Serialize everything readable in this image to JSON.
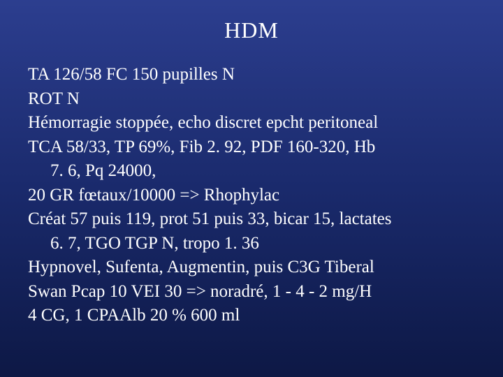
{
  "slide": {
    "title": "HDM",
    "title_fontsize": 32,
    "body_fontsize": 25,
    "text_color": "#ffffff",
    "background_gradient": [
      "#2c3e8f",
      "#1a2a6c",
      "#0d1845"
    ],
    "font_family": "Times New Roman",
    "lines": [
      {
        "text": "TA 126/58 FC 150 pupilles N",
        "indent": false
      },
      {
        "text": "ROT N",
        "indent": false
      },
      {
        "text": "Hémorragie stoppée, echo discret epcht peritoneal",
        "indent": false
      },
      {
        "text": "TCA 58/33, TP 69%, Fib 2. 92, PDF 160-320, Hb",
        "indent": false
      },
      {
        "text": "7. 6, Pq 24000,",
        "indent": true
      },
      {
        "text": "20 GR fœtaux/10000 => Rhophylac",
        "indent": false
      },
      {
        "text": "Créat 57 puis 119, prot 51 puis 33, bicar 15, lactates",
        "indent": false
      },
      {
        "text": "6. 7, TGO TGP N, tropo 1. 36",
        "indent": true
      },
      {
        "text": "Hypnovel, Sufenta, Augmentin, puis C3G Tiberal",
        "indent": false
      },
      {
        "text": "Swan Pcap 10 VEI 30 => noradré, 1 - 4 - 2 mg/H",
        "indent": false
      },
      {
        "text": "4 CG, 1 CPAAlb 20 % 600 ml",
        "indent": false
      }
    ]
  }
}
